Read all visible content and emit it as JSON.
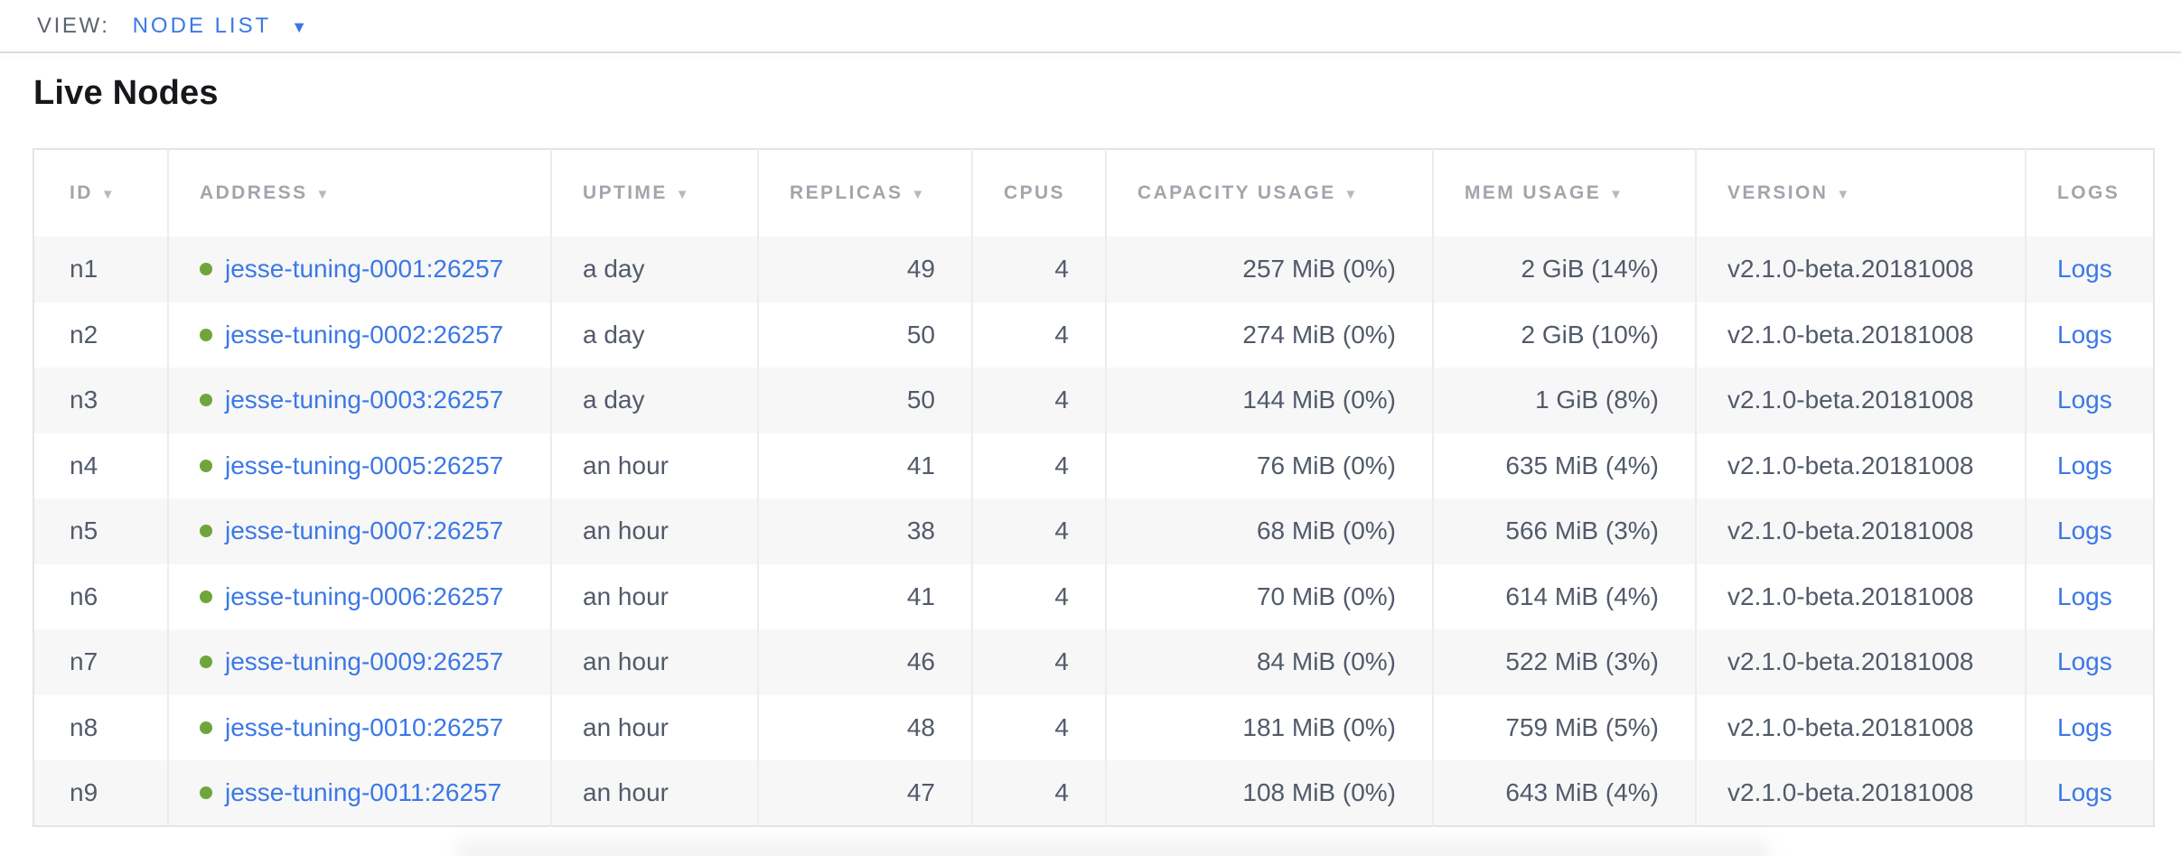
{
  "view_bar": {
    "label": "VIEW:",
    "selected": "NODE LIST"
  },
  "page": {
    "title": "Live Nodes"
  },
  "colors": {
    "accent_blue": "#3b78e7",
    "healthy_green": "#70a53c",
    "header_gray": "#a1a5ac",
    "cell_text": "#525a6a"
  },
  "table": {
    "columns": [
      {
        "key": "id",
        "label": "ID",
        "sortable": true,
        "align": "left"
      },
      {
        "key": "address",
        "label": "ADDRESS",
        "sortable": true,
        "align": "left"
      },
      {
        "key": "uptime",
        "label": "UPTIME",
        "sortable": true,
        "align": "left"
      },
      {
        "key": "replicas",
        "label": "REPLICAS",
        "sortable": true,
        "align": "right"
      },
      {
        "key": "cpus",
        "label": "CPUS",
        "sortable": false,
        "align": "right"
      },
      {
        "key": "capacity",
        "label": "CAPACITY USAGE",
        "sortable": true,
        "align": "right"
      },
      {
        "key": "mem",
        "label": "MEM USAGE",
        "sortable": true,
        "align": "right"
      },
      {
        "key": "version",
        "label": "VERSION",
        "sortable": true,
        "align": "left"
      },
      {
        "key": "logs",
        "label": "LOGS",
        "sortable": false,
        "align": "left"
      }
    ],
    "rows": [
      {
        "id": "n1",
        "address": "jesse-tuning-0001:26257",
        "status": "healthy",
        "uptime": "a day",
        "replicas": "49",
        "cpus": "4",
        "capacity": "257 MiB (0%)",
        "mem": "2 GiB (14%)",
        "version": "v2.1.0-beta.20181008",
        "logs": "Logs"
      },
      {
        "id": "n2",
        "address": "jesse-tuning-0002:26257",
        "status": "healthy",
        "uptime": "a day",
        "replicas": "50",
        "cpus": "4",
        "capacity": "274 MiB (0%)",
        "mem": "2 GiB (10%)",
        "version": "v2.1.0-beta.20181008",
        "logs": "Logs"
      },
      {
        "id": "n3",
        "address": "jesse-tuning-0003:26257",
        "status": "healthy",
        "uptime": "a day",
        "replicas": "50",
        "cpus": "4",
        "capacity": "144 MiB (0%)",
        "mem": "1 GiB (8%)",
        "version": "v2.1.0-beta.20181008",
        "logs": "Logs"
      },
      {
        "id": "n4",
        "address": "jesse-tuning-0005:26257",
        "status": "healthy",
        "uptime": "an hour",
        "replicas": "41",
        "cpus": "4",
        "capacity": "76 MiB (0%)",
        "mem": "635 MiB (4%)",
        "version": "v2.1.0-beta.20181008",
        "logs": "Logs"
      },
      {
        "id": "n5",
        "address": "jesse-tuning-0007:26257",
        "status": "healthy",
        "uptime": "an hour",
        "replicas": "38",
        "cpus": "4",
        "capacity": "68 MiB (0%)",
        "mem": "566 MiB (3%)",
        "version": "v2.1.0-beta.20181008",
        "logs": "Logs"
      },
      {
        "id": "n6",
        "address": "jesse-tuning-0006:26257",
        "status": "healthy",
        "uptime": "an hour",
        "replicas": "41",
        "cpus": "4",
        "capacity": "70 MiB (0%)",
        "mem": "614 MiB (4%)",
        "version": "v2.1.0-beta.20181008",
        "logs": "Logs"
      },
      {
        "id": "n7",
        "address": "jesse-tuning-0009:26257",
        "status": "healthy",
        "uptime": "an hour",
        "replicas": "46",
        "cpus": "4",
        "capacity": "84 MiB (0%)",
        "mem": "522 MiB (3%)",
        "version": "v2.1.0-beta.20181008",
        "logs": "Logs"
      },
      {
        "id": "n8",
        "address": "jesse-tuning-0010:26257",
        "status": "healthy",
        "uptime": "an hour",
        "replicas": "48",
        "cpus": "4",
        "capacity": "181 MiB (0%)",
        "mem": "759 MiB (5%)",
        "version": "v2.1.0-beta.20181008",
        "logs": "Logs"
      },
      {
        "id": "n9",
        "address": "jesse-tuning-0011:26257",
        "status": "healthy",
        "uptime": "an hour",
        "replicas": "47",
        "cpus": "4",
        "capacity": "108 MiB (0%)",
        "mem": "643 MiB (4%)",
        "version": "v2.1.0-beta.20181008",
        "logs": "Logs"
      }
    ],
    "sort_arrow_glyph": "▼",
    "caret_glyph": "▼"
  }
}
